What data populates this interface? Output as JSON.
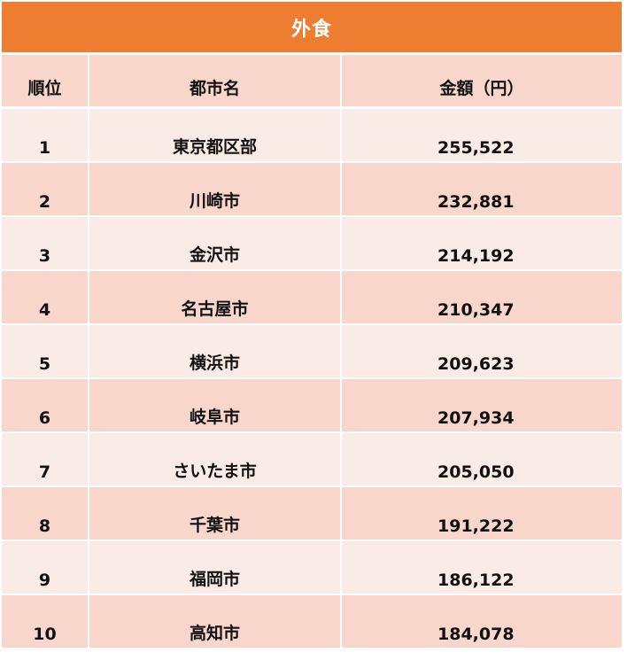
{
  "title": "外食",
  "headers": {
    "rank": "順位",
    "city": "都市名",
    "amount": "金額（円）"
  },
  "rows": [
    {
      "rank": "1",
      "city": "東京都区部",
      "amount": "255,522"
    },
    {
      "rank": "2",
      "city": "川崎市",
      "amount": "232,881"
    },
    {
      "rank": "3",
      "city": "金沢市",
      "amount": "214,192"
    },
    {
      "rank": "4",
      "city": "名古屋市",
      "amount": "210,347"
    },
    {
      "rank": "5",
      "city": "横浜市",
      "amount": "209,623"
    },
    {
      "rank": "6",
      "city": "岐阜市",
      "amount": "207,934"
    },
    {
      "rank": "7",
      "city": "さいたま市",
      "amount": "205,050"
    },
    {
      "rank": "8",
      "city": "千葉市",
      "amount": "191,222"
    },
    {
      "rank": "9",
      "city": "福岡市",
      "amount": "186,122"
    },
    {
      "rank": "10",
      "city": "高知市",
      "amount": "184,078"
    }
  ],
  "colors": {
    "title_bg": "#ed7d31",
    "header_bg": "#f8d6cb",
    "row_dark": "#f8d6cb",
    "row_light": "#fbebe6"
  }
}
